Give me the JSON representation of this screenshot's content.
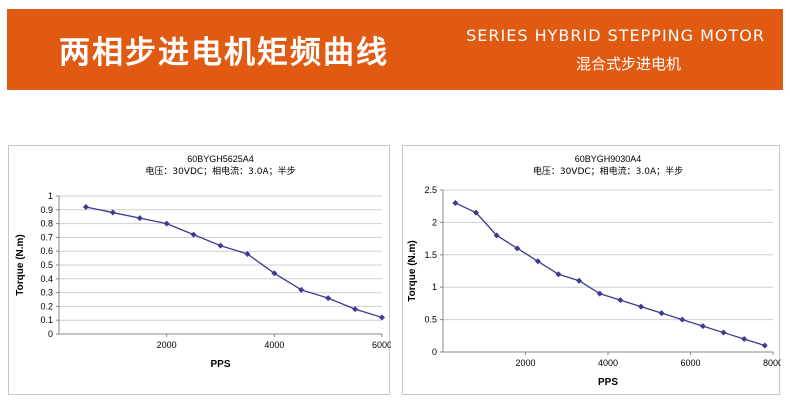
{
  "header": {
    "title": "两相步进电机矩频曲线",
    "subtitle_en": "SERIES HYBRID STEPPING MOTOR",
    "subtitle_cn": "混合式步进电机",
    "background_color": "#e05a12",
    "text_color": "#ffffff"
  },
  "chart_data": [
    {
      "type": "line",
      "title": "60BYGH5625A4",
      "subtitle": "电压：30VDC；相电流：3.0A；半步",
      "xlabel": "PPS",
      "ylabel": "Torque (N.m)",
      "xlim": [
        0,
        6000
      ],
      "ylim": [
        0,
        1
      ],
      "xticks": [
        "2000",
        "4000",
        "6000"
      ],
      "yticks": [
        "0",
        "0.1",
        "0.2",
        "0.3",
        "0.4",
        "0.5",
        "0.6",
        "0.7",
        "0.8",
        "0.9",
        "1"
      ],
      "grid": true,
      "line_color": "#3b3b8f",
      "series": [
        {
          "x": [
            500,
            1000,
            1500,
            2000,
            2500,
            3000,
            3500,
            4000,
            4500,
            5000,
            5500,
            6000
          ],
          "y": [
            0.92,
            0.88,
            0.84,
            0.8,
            0.72,
            0.64,
            0.58,
            0.44,
            0.32,
            0.26,
            0.18,
            0.12
          ]
        }
      ]
    },
    {
      "type": "line",
      "title": "60BYGH9030A4",
      "subtitle": "电压：30VDC；相电流：3.0A；半步",
      "xlabel": "PPS",
      "ylabel": "Torque (N.m)",
      "xlim": [
        0,
        8000
      ],
      "ylim": [
        0,
        2.5
      ],
      "xticks": [
        "2000",
        "4000",
        "6000",
        "8000"
      ],
      "yticks": [
        "0",
        "0.5",
        "1",
        "1.5",
        "2",
        "2.5"
      ],
      "grid": true,
      "line_color": "#3b3b8f",
      "series": [
        {
          "x": [
            300,
            800,
            1300,
            1800,
            2300,
            2800,
            3300,
            3800,
            4300,
            4800,
            5300,
            5800,
            6300,
            6800,
            7300,
            7800
          ],
          "y": [
            2.3,
            2.15,
            1.8,
            1.6,
            1.4,
            1.2,
            1.1,
            0.9,
            0.8,
            0.7,
            0.6,
            0.5,
            0.4,
            0.3,
            0.2,
            0.1
          ]
        }
      ]
    }
  ]
}
